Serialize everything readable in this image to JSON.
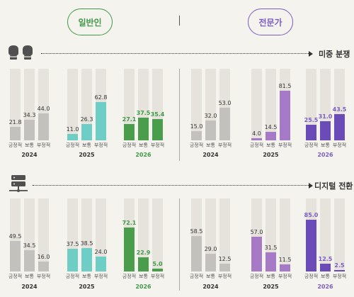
{
  "header": {
    "general_label": "일반인",
    "expert_label": "전문가"
  },
  "colors": {
    "gray": "#c2c1bd",
    "teal": "#6ecec6",
    "green": "#4a9d4a",
    "purple_light": "#a77ac8",
    "purple_dark": "#6a4bb8",
    "general_accent": "#3e9a47",
    "expert_accent": "#7c5cc4"
  },
  "chart_data": [
    {
      "type": "bar",
      "title": "미중 분쟁",
      "icon": "boxing-gloves-icon",
      "categories": [
        "긍정적",
        "보통",
        "부정적"
      ],
      "groups": {
        "general": [
          {
            "year": "2024",
            "values": [
              21.8,
              34.3,
              44.0
            ]
          },
          {
            "year": "2025",
            "values": [
              11.0,
              26.3,
              62.8
            ]
          },
          {
            "year": "2026",
            "values": [
              27.1,
              37.5,
              35.4
            ]
          }
        ],
        "expert": [
          {
            "year": "2024",
            "values": [
              15.0,
              32.0,
              53.0
            ]
          },
          {
            "year": "2025",
            "values": [
              4.0,
              14.5,
              81.5
            ]
          },
          {
            "year": "2026",
            "values": [
              25.5,
              31.0,
              43.5
            ]
          }
        ]
      },
      "ylim": [
        0,
        100
      ]
    },
    {
      "type": "bar",
      "title": "디지털 전환",
      "icon": "server-network-icon",
      "categories": [
        "긍정적",
        "보통",
        "부정적"
      ],
      "groups": {
        "general": [
          {
            "year": "2024",
            "values": [
              49.5,
              34.5,
              16.0
            ]
          },
          {
            "year": "2025",
            "values": [
              37.5,
              38.5,
              24.0
            ]
          },
          {
            "year": "2026",
            "values": [
              72.1,
              22.9,
              5.0
            ]
          }
        ],
        "expert": [
          {
            "year": "2024",
            "values": [
              58.5,
              29.0,
              12.5
            ]
          },
          {
            "year": "2025",
            "values": [
              57.0,
              31.5,
              11.5
            ]
          },
          {
            "year": "2026",
            "values": [
              85.0,
              12.5,
              2.5
            ]
          }
        ]
      },
      "ylim": [
        0,
        100
      ]
    }
  ]
}
